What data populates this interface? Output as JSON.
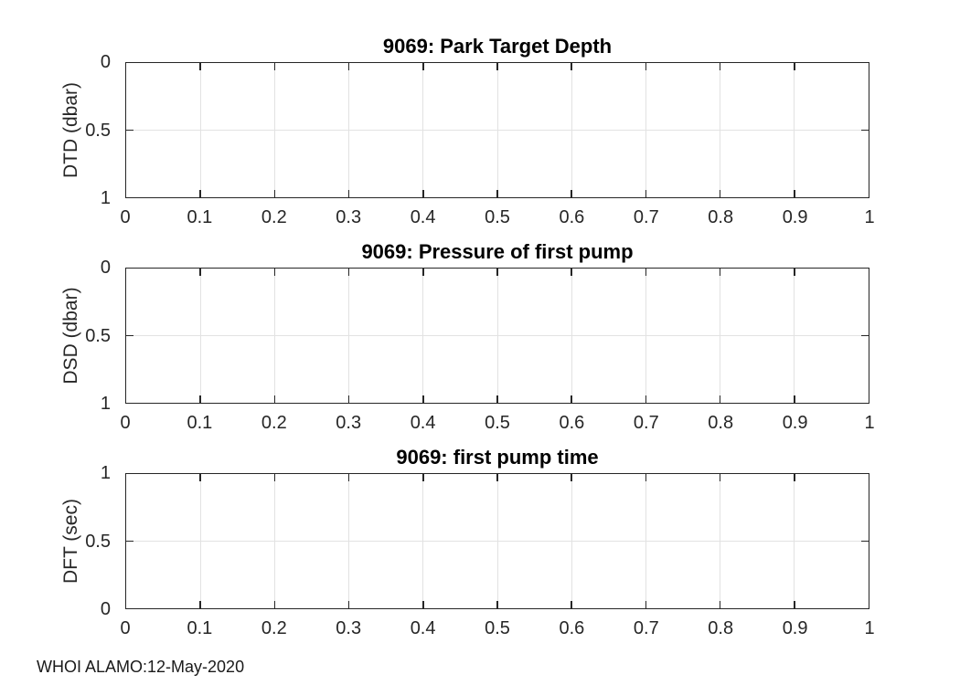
{
  "figure": {
    "footer": "WHOI ALAMO:12-May-2020",
    "colors": {
      "background": "#ffffff",
      "axis": "#262626",
      "grid": "#e2e2e2",
      "title": "#000000",
      "tick_label": "#262626"
    }
  },
  "chart_data": [
    {
      "type": "line",
      "title": "9069: Park Target Depth",
      "xlabel": "",
      "ylabel": "DTD (dbar)",
      "xlim": [
        0,
        1
      ],
      "ylim": [
        0,
        1
      ],
      "y_direction": "reverse",
      "xticks": [
        "0",
        "0.1",
        "0.2",
        "0.3",
        "0.4",
        "0.5",
        "0.6",
        "0.7",
        "0.8",
        "0.9",
        "1"
      ],
      "yticks_top_to_bottom": [
        "0",
        "0.5",
        "1"
      ],
      "grid": true,
      "box": true,
      "series": []
    },
    {
      "type": "line",
      "title": "9069: Pressure of first pump",
      "xlabel": "",
      "ylabel": "DSD (dbar)",
      "xlim": [
        0,
        1
      ],
      "ylim": [
        0,
        1
      ],
      "y_direction": "reverse",
      "xticks": [
        "0",
        "0.1",
        "0.2",
        "0.3",
        "0.4",
        "0.5",
        "0.6",
        "0.7",
        "0.8",
        "0.9",
        "1"
      ],
      "yticks_top_to_bottom": [
        "0",
        "0.5",
        "1"
      ],
      "grid": true,
      "box": true,
      "series": []
    },
    {
      "type": "line",
      "title": "9069: first pump time",
      "xlabel": "",
      "ylabel": "DFT (sec)",
      "xlim": [
        0,
        1
      ],
      "ylim": [
        0,
        1
      ],
      "y_direction": "normal",
      "xticks": [
        "0",
        "0.1",
        "0.2",
        "0.3",
        "0.4",
        "0.5",
        "0.6",
        "0.7",
        "0.8",
        "0.9",
        "1"
      ],
      "yticks_top_to_bottom": [
        "1",
        "0.5",
        "0"
      ],
      "grid": true,
      "box": true,
      "series": []
    }
  ]
}
